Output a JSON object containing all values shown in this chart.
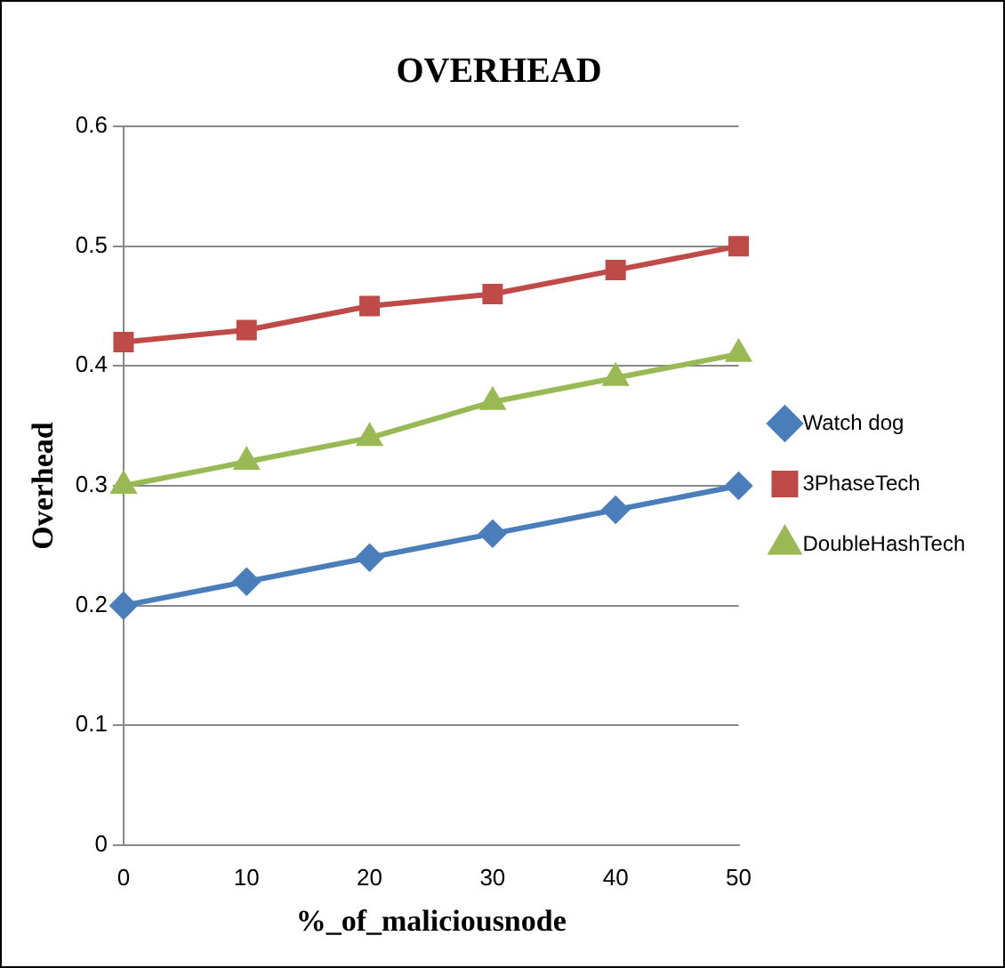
{
  "chart_data": {
    "type": "line",
    "title": "OVERHEAD",
    "xlabel": "%_of_maliciousnode",
    "ylabel": "Overhead",
    "categories": [
      "0",
      "10",
      "20",
      "30",
      "40",
      "50"
    ],
    "series": [
      {
        "name": "Watch dog",
        "color": "#4a7ebb",
        "marker": "diamond",
        "values": [
          0.2,
          0.22,
          0.24,
          0.26,
          0.28,
          0.3
        ]
      },
      {
        "name": "3PhaseTech",
        "color": "#be4b48",
        "marker": "square",
        "values": [
          0.42,
          0.43,
          0.45,
          0.46,
          0.48,
          0.5
        ]
      },
      {
        "name": "DoubleHashTech",
        "color": "#98b954",
        "marker": "triangle",
        "values": [
          0.3,
          0.32,
          0.34,
          0.37,
          0.39,
          0.41
        ]
      }
    ],
    "ylim": [
      0,
      0.6
    ],
    "yticks": [
      0,
      0.1,
      0.2,
      0.3,
      0.4,
      0.5,
      0.6
    ],
    "grid": "y",
    "legend": "right"
  }
}
